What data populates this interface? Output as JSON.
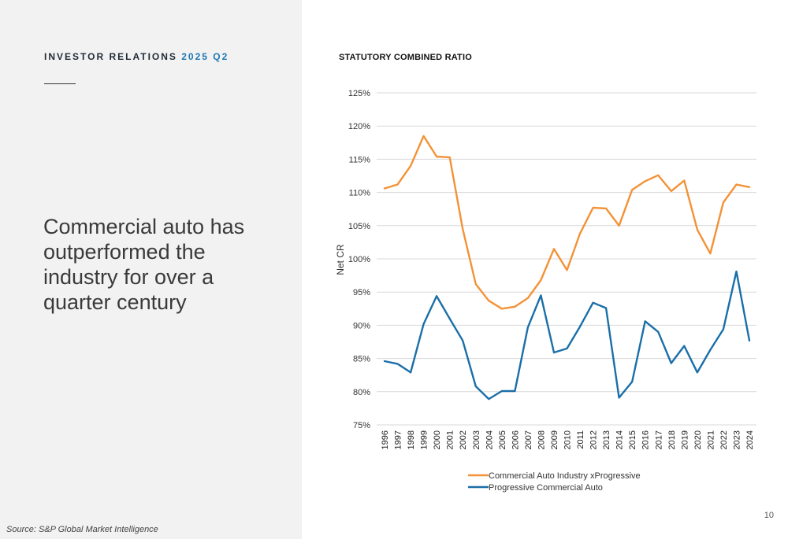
{
  "header": {
    "eyebrow_label": "INVESTOR RELATIONS",
    "eyebrow_period": "2025 Q2"
  },
  "headline": "Commercial auto has outperformed the industry for over a quarter century",
  "source": "Source: S&P Global Market Intelligence",
  "page_number": "10",
  "colors": {
    "industry": "#f39237",
    "progressive": "#1a6fa8"
  },
  "chart_data": {
    "type": "line",
    "title": "STATUTORY COMBINED RATIO",
    "ylabel": "Net CR",
    "xlabel": "",
    "ylim": [
      75,
      125
    ],
    "yticks": [
      75,
      80,
      85,
      90,
      95,
      100,
      105,
      110,
      115,
      120,
      125
    ],
    "ytick_labels": [
      "75%",
      "80%",
      "85%",
      "90%",
      "95%",
      "100%",
      "105%",
      "110%",
      "115%",
      "120%",
      "125%"
    ],
    "grid": true,
    "legend_position": "bottom",
    "categories": [
      "1996",
      "1997",
      "1998",
      "1999",
      "2000",
      "2001",
      "2002",
      "2003",
      "2004",
      "2005",
      "2006",
      "2007",
      "2008",
      "2009",
      "2010",
      "2011",
      "2012",
      "2013",
      "2014",
      "2015",
      "2016",
      "2017",
      "2018",
      "2019",
      "2020",
      "2021",
      "2022",
      "2023",
      "2024"
    ],
    "series": [
      {
        "name": "Commercial Auto Industry xProgressive",
        "values": [
          110.6,
          111.2,
          114.0,
          118.5,
          115.4,
          115.3,
          104.5,
          96.2,
          93.7,
          92.5,
          92.8,
          94.1,
          96.8,
          101.5,
          98.3,
          103.8,
          107.7,
          107.6,
          105.0,
          110.4,
          111.7,
          112.6,
          110.2,
          111.8,
          104.4,
          100.8,
          108.5,
          111.2,
          110.8
        ]
      },
      {
        "name": "Progressive Commercial Auto",
        "values": [
          84.6,
          84.2,
          82.9,
          90.2,
          94.4,
          91.0,
          87.7,
          80.8,
          78.9,
          80.1,
          80.1,
          89.7,
          94.5,
          85.9,
          86.5,
          89.8,
          93.4,
          92.6,
          79.1,
          81.5,
          90.6,
          89.0,
          84.3,
          86.9,
          82.9,
          86.3,
          89.4,
          98.1,
          87.7
        ]
      }
    ]
  }
}
